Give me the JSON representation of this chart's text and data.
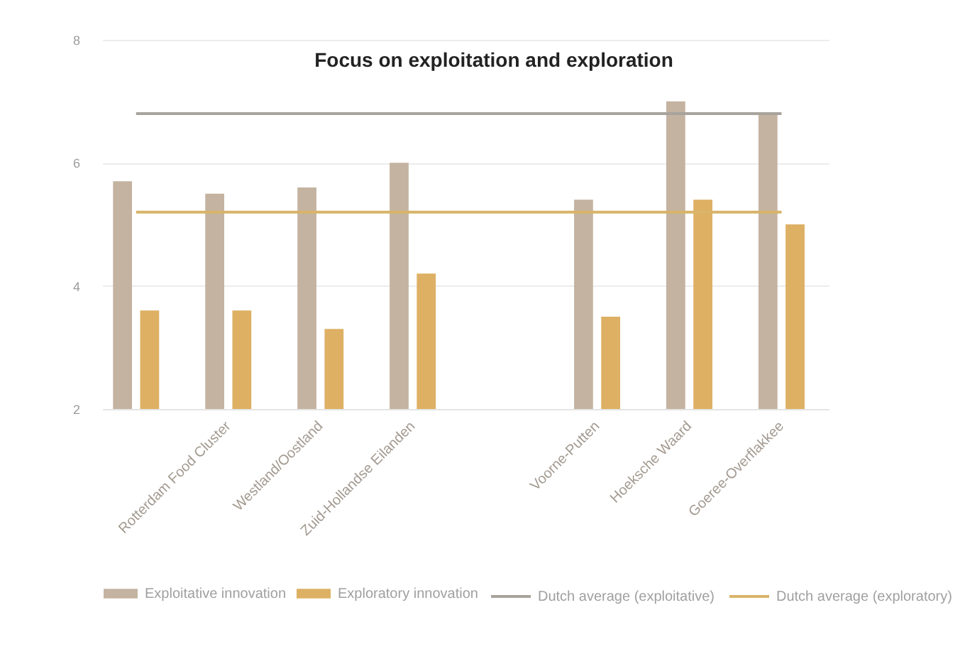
{
  "chart_data": {
    "type": "bar",
    "title": "Focus on exploitation and exploration",
    "categories": [
      null,
      "Rotterdam Food Cluster",
      "Westland/Oostland",
      "Zuid-Hollandse Eilanden",
      null,
      "Voorne-Putten",
      "Hoeksche Waard",
      "Goeree-Overflakkee"
    ],
    "series": [
      {
        "name": "Exploitative innovation",
        "color": "#c4b3a1",
        "values": [
          5.7,
          5.5,
          5.6,
          6.0,
          null,
          5.4,
          7.0,
          6.8
        ]
      },
      {
        "name": "Exploratory innovation",
        "color": "#ddb064",
        "values": [
          3.6,
          3.6,
          3.3,
          4.2,
          null,
          3.5,
          5.4,
          5.0
        ]
      },
      {
        "name": "Dutch average (exploitative)",
        "type": "line",
        "color": "#a8a39c",
        "values": [
          6.8,
          6.8,
          6.8,
          6.8,
          6.8,
          6.8,
          6.8,
          6.8
        ]
      },
      {
        "name": "Dutch average (exploratory)",
        "type": "line",
        "color": "#d9b469",
        "values": [
          5.2,
          5.2,
          5.2,
          5.2,
          5.2,
          5.2,
          5.2,
          5.2
        ]
      }
    ],
    "ylim": [
      2,
      8
    ],
    "yticks": [
      2,
      4,
      6,
      8
    ],
    "grid": "y",
    "legend": "bottom"
  }
}
